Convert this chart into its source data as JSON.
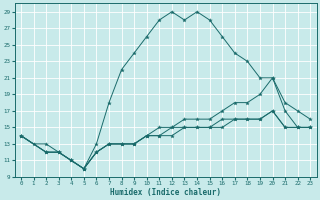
{
  "xlabel": "Humidex (Indice chaleur)",
  "background_color": "#c8eaea",
  "line_color": "#1a6b6b",
  "grid_color": "#ffffff",
  "xlim_min": -0.5,
  "xlim_max": 23.5,
  "ylim_min": 9,
  "ylim_max": 30,
  "xticks": [
    0,
    1,
    2,
    3,
    4,
    5,
    6,
    7,
    8,
    9,
    10,
    11,
    12,
    13,
    14,
    15,
    16,
    17,
    18,
    19,
    20,
    21,
    22,
    23
  ],
  "yticks": [
    9,
    11,
    13,
    15,
    17,
    19,
    21,
    23,
    25,
    27,
    29
  ],
  "line1_x": [
    0,
    1,
    2,
    3,
    4,
    5,
    6,
    7,
    8,
    9,
    10,
    11,
    12,
    13,
    14,
    15,
    16,
    17,
    18,
    19,
    20,
    21,
    22,
    23
  ],
  "line1_y": [
    14,
    13,
    13,
    12,
    11,
    10,
    13,
    18,
    22,
    24,
    26,
    28,
    29,
    28,
    29,
    28,
    26,
    24,
    23,
    21,
    21,
    17,
    15,
    15
  ],
  "line2_x": [
    0,
    2,
    3,
    4,
    5,
    6,
    7,
    8,
    9,
    10,
    11,
    12,
    13,
    14,
    15,
    16,
    17,
    18,
    19,
    20,
    21,
    22,
    23
  ],
  "line2_y": [
    14,
    12,
    12,
    11,
    10,
    12,
    13,
    13,
    13,
    14,
    15,
    15,
    16,
    16,
    16,
    17,
    18,
    18,
    19,
    21,
    18,
    17,
    16
  ],
  "line3_x": [
    0,
    2,
    3,
    4,
    5,
    6,
    7,
    8,
    9,
    10,
    11,
    12,
    13,
    14,
    15,
    16,
    17,
    18,
    19,
    20,
    21,
    22,
    23
  ],
  "line3_y": [
    14,
    12,
    12,
    11,
    10,
    12,
    13,
    13,
    13,
    14,
    14,
    15,
    15,
    15,
    15,
    16,
    16,
    16,
    16,
    17,
    15,
    15,
    15
  ],
  "line4_x": [
    0,
    2,
    3,
    4,
    5,
    6,
    7,
    8,
    9,
    10,
    11,
    12,
    13,
    14,
    15,
    16,
    17,
    18,
    19,
    20,
    21,
    22,
    23
  ],
  "line4_y": [
    14,
    12,
    12,
    11,
    10,
    12,
    13,
    13,
    13,
    14,
    14,
    14,
    15,
    15,
    15,
    15,
    16,
    16,
    16,
    17,
    15,
    15,
    15
  ]
}
